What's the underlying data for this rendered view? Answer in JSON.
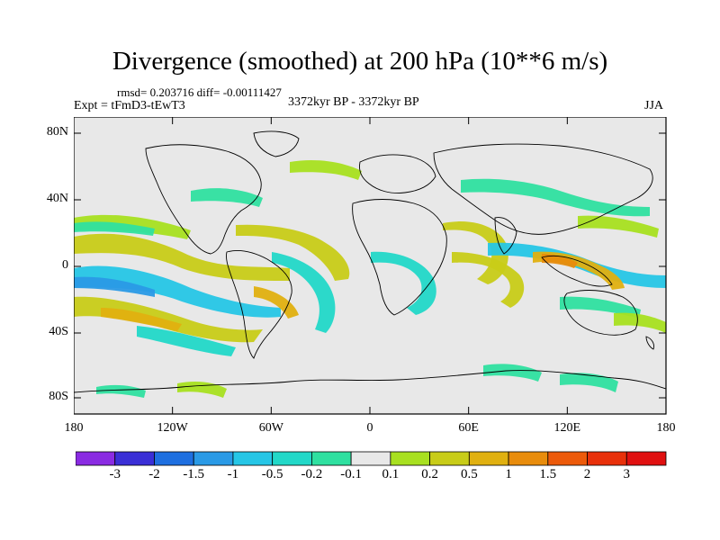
{
  "title": "Divergence (smoothed) at 200 hPa (10**6 m/s)",
  "stats": "rmsd= 0.203716 diff= -0.00111427",
  "experiment": "Expt = tFmD3-tEwT3",
  "period": "3372kyr BP - 3372kyr BP",
  "season": "JJA",
  "axes": {
    "y_ticks": [
      "80N",
      "40N",
      "0",
      "40S",
      "80S"
    ],
    "x_ticks": [
      "180",
      "120W",
      "60W",
      "0",
      "60E",
      "120E",
      "180"
    ]
  },
  "colorbar": {
    "labels": [
      "-3",
      "-2",
      "-1.5",
      "-1",
      "-0.5",
      "-0.2",
      "-0.1",
      "0.1",
      "0.2",
      "0.5",
      "1",
      "1.5",
      "2",
      "3"
    ],
    "colors": [
      "#8a2be2",
      "#3a2fd6",
      "#1e6fe0",
      "#2a9ae6",
      "#26c6e6",
      "#22d8c8",
      "#2fe0a0",
      "#e8e8e8",
      "#a8e020",
      "#c8cc18",
      "#e0b010",
      "#e88c0c",
      "#ec5a0a",
      "#e8300a",
      "#e01010"
    ]
  },
  "colors": {
    "land_bg": "#e8e8e8",
    "neg_light": "#2fe0a0",
    "neg_mid": "#22d8c8",
    "neg_strong": "#26c6e6",
    "neg_deep": "#2a9ae6",
    "pos_light": "#a8e020",
    "pos_mid": "#c8cc18",
    "pos_strong": "#e0b010",
    "pos_deep": "#e88c0c"
  }
}
